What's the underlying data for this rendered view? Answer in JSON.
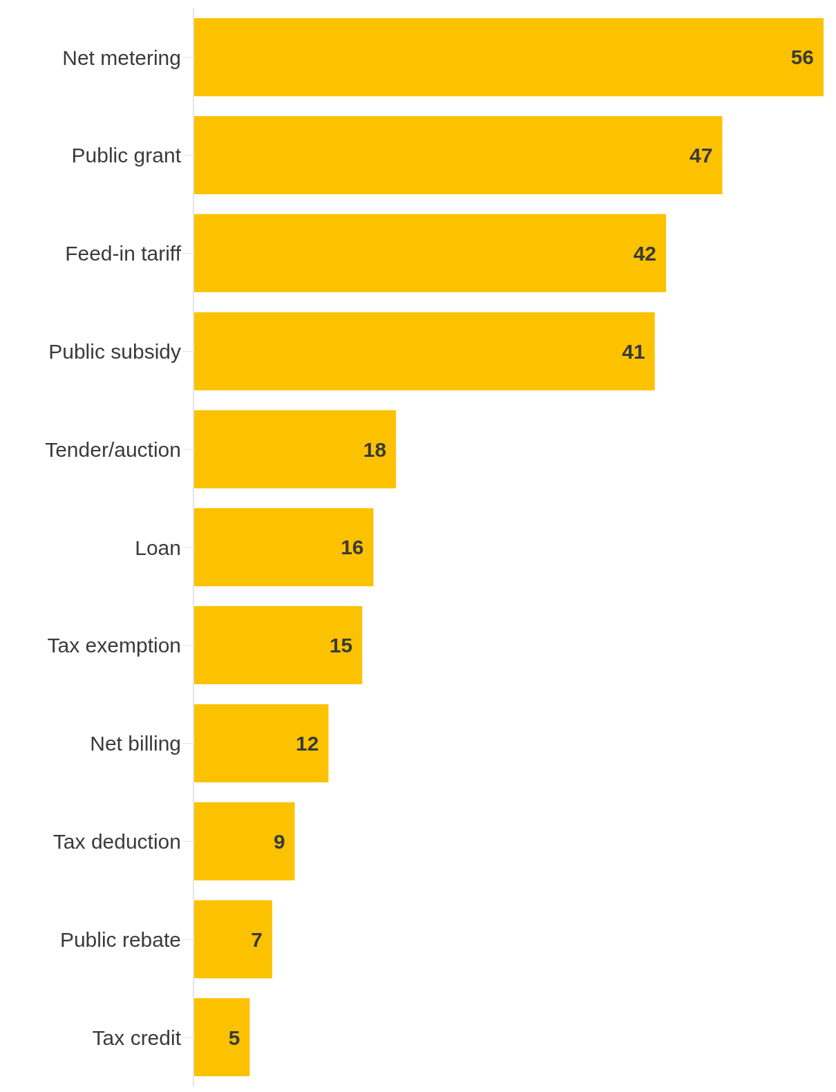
{
  "chart_data": {
    "type": "bar",
    "orientation": "horizontal",
    "categories": [
      "Net metering",
      "Public grant",
      "Feed-in tariff",
      "Public subsidy",
      "Tender/auction",
      "Loan",
      "Tax exemption",
      "Net billing",
      "Tax deduction",
      "Public rebate",
      "Tax credit"
    ],
    "values": [
      56,
      47,
      42,
      41,
      18,
      16,
      15,
      12,
      9,
      7,
      5
    ],
    "color": "#fcc200",
    "data_labels": true
  }
}
